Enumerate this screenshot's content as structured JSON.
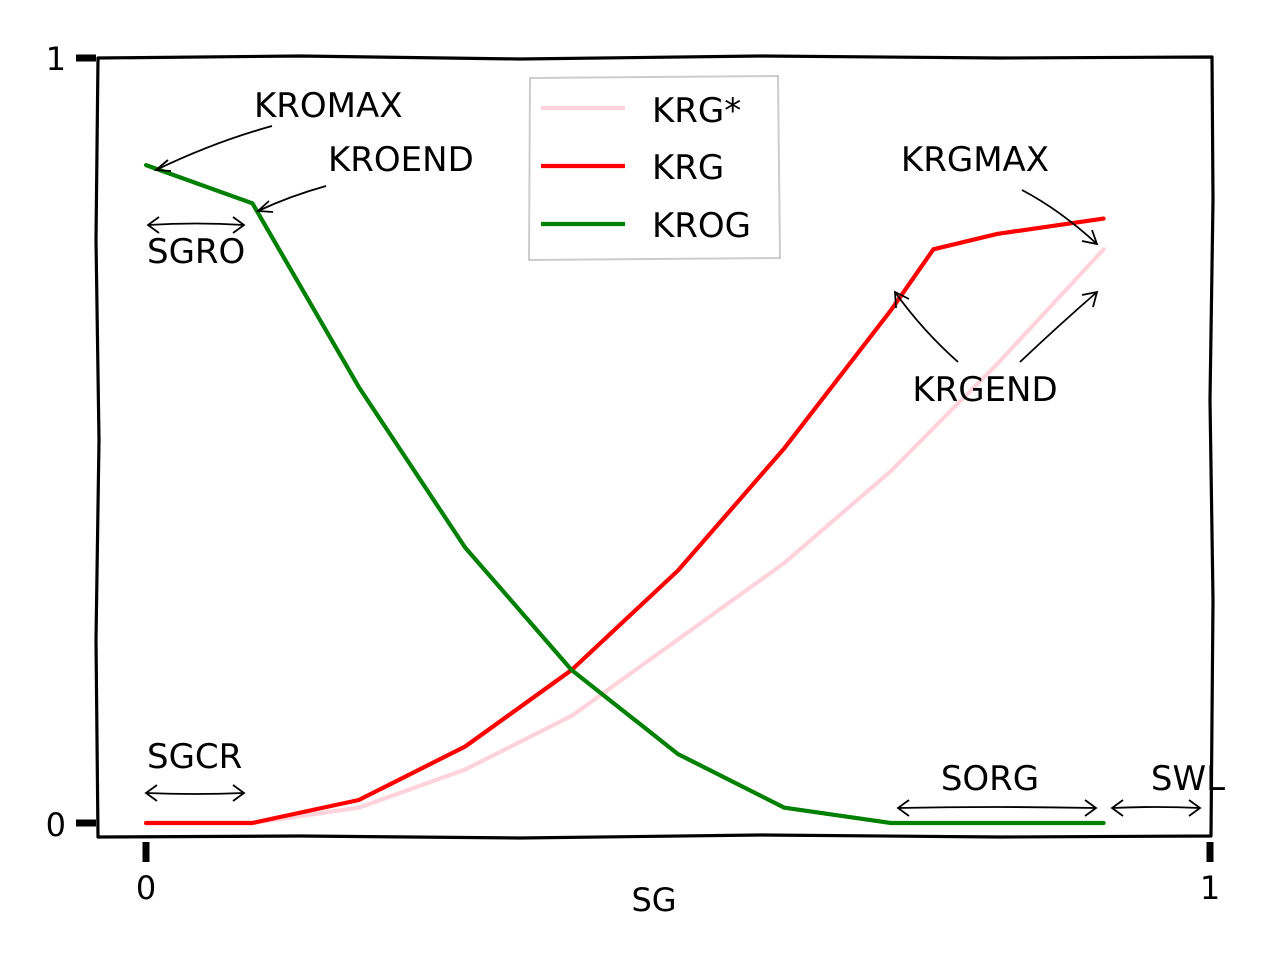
{
  "chart_data": {
    "type": "line",
    "xlabel": "SG",
    "ylabel": "",
    "xlim": [
      0,
      1
    ],
    "ylim": [
      0,
      1
    ],
    "x_ticks": [
      0,
      1
    ],
    "x_tick_labels": [
      "0",
      "1"
    ],
    "y_ticks": [
      0,
      1
    ],
    "y_tick_labels": [
      "0",
      "1"
    ],
    "grid": false,
    "legend_position": "top-center",
    "series": [
      {
        "name": "KRG*",
        "color": "#ffd3dc",
        "x": [
          0.0,
          0.1,
          0.2,
          0.3,
          0.4,
          0.5,
          0.6,
          0.7,
          0.8,
          0.9
        ],
        "y": [
          0.0,
          0.0,
          0.02,
          0.07,
          0.14,
          0.24,
          0.34,
          0.46,
          0.6,
          0.75
        ]
      },
      {
        "name": "KRG",
        "color": "#ff0000",
        "x": [
          0.0,
          0.1,
          0.2,
          0.3,
          0.4,
          0.5,
          0.6,
          0.7,
          0.74,
          0.8,
          0.9
        ],
        "y": [
          0.0,
          0.0,
          0.03,
          0.1,
          0.2,
          0.33,
          0.49,
          0.67,
          0.75,
          0.77,
          0.79
        ]
      },
      {
        "name": "KROG",
        "color": "#008000",
        "x": [
          0.0,
          0.1,
          0.2,
          0.3,
          0.4,
          0.5,
          0.6,
          0.7,
          0.8,
          0.9
        ],
        "y": [
          0.86,
          0.81,
          0.57,
          0.36,
          0.2,
          0.09,
          0.02,
          0.0,
          0.0,
          0.0
        ]
      }
    ],
    "annotations": [
      {
        "text": "KROMAX"
      },
      {
        "text": "KROEND"
      },
      {
        "text": "SGRO"
      },
      {
        "text": "SGCR"
      },
      {
        "text": "KRGMAX"
      },
      {
        "text": "KRGEND"
      },
      {
        "text": "SORG"
      },
      {
        "text": "SWL"
      }
    ]
  }
}
